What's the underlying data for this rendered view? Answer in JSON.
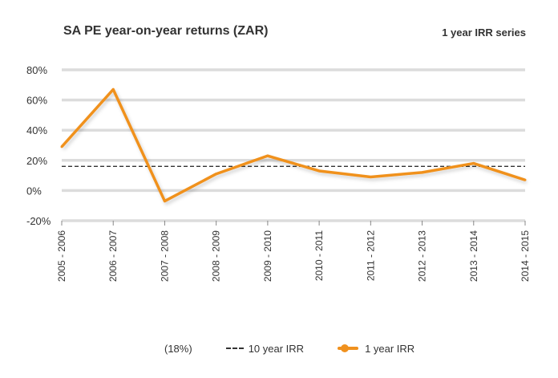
{
  "chart_data": {
    "type": "line",
    "title": "SA PE year-on-year returns (ZAR)",
    "subtitle": "1 year IRR series",
    "categories": [
      "2005 - 2006",
      "2006 - 2007",
      "2007 - 2008",
      "2008 - 2009",
      "2009 - 2010",
      "2010 - 2011",
      "2011 - 2012",
      "2012 - 2013",
      "2013 - 2014",
      "2014 - 2015"
    ],
    "series": [
      {
        "name": "1 year IRR",
        "values": [
          29,
          67,
          -7,
          11,
          23,
          13,
          9,
          12,
          18,
          7
        ],
        "color": "#f0911e"
      },
      {
        "name": "10 year IRR",
        "values": [
          16,
          16,
          16,
          16,
          16,
          16,
          16,
          16,
          16,
          16
        ],
        "color": "#333333",
        "style": "dashed"
      }
    ],
    "ylim": [
      -20,
      80
    ],
    "yticks": [
      -20,
      0,
      20,
      40,
      60,
      80
    ],
    "ytick_labels": [
      "-20%",
      "0%",
      "20%",
      "40%",
      "60%",
      "80%"
    ],
    "grid": true,
    "legend": {
      "position": "bottom",
      "entries": [
        "(18%)",
        "10 year IRR",
        "1 year IRR"
      ]
    }
  }
}
